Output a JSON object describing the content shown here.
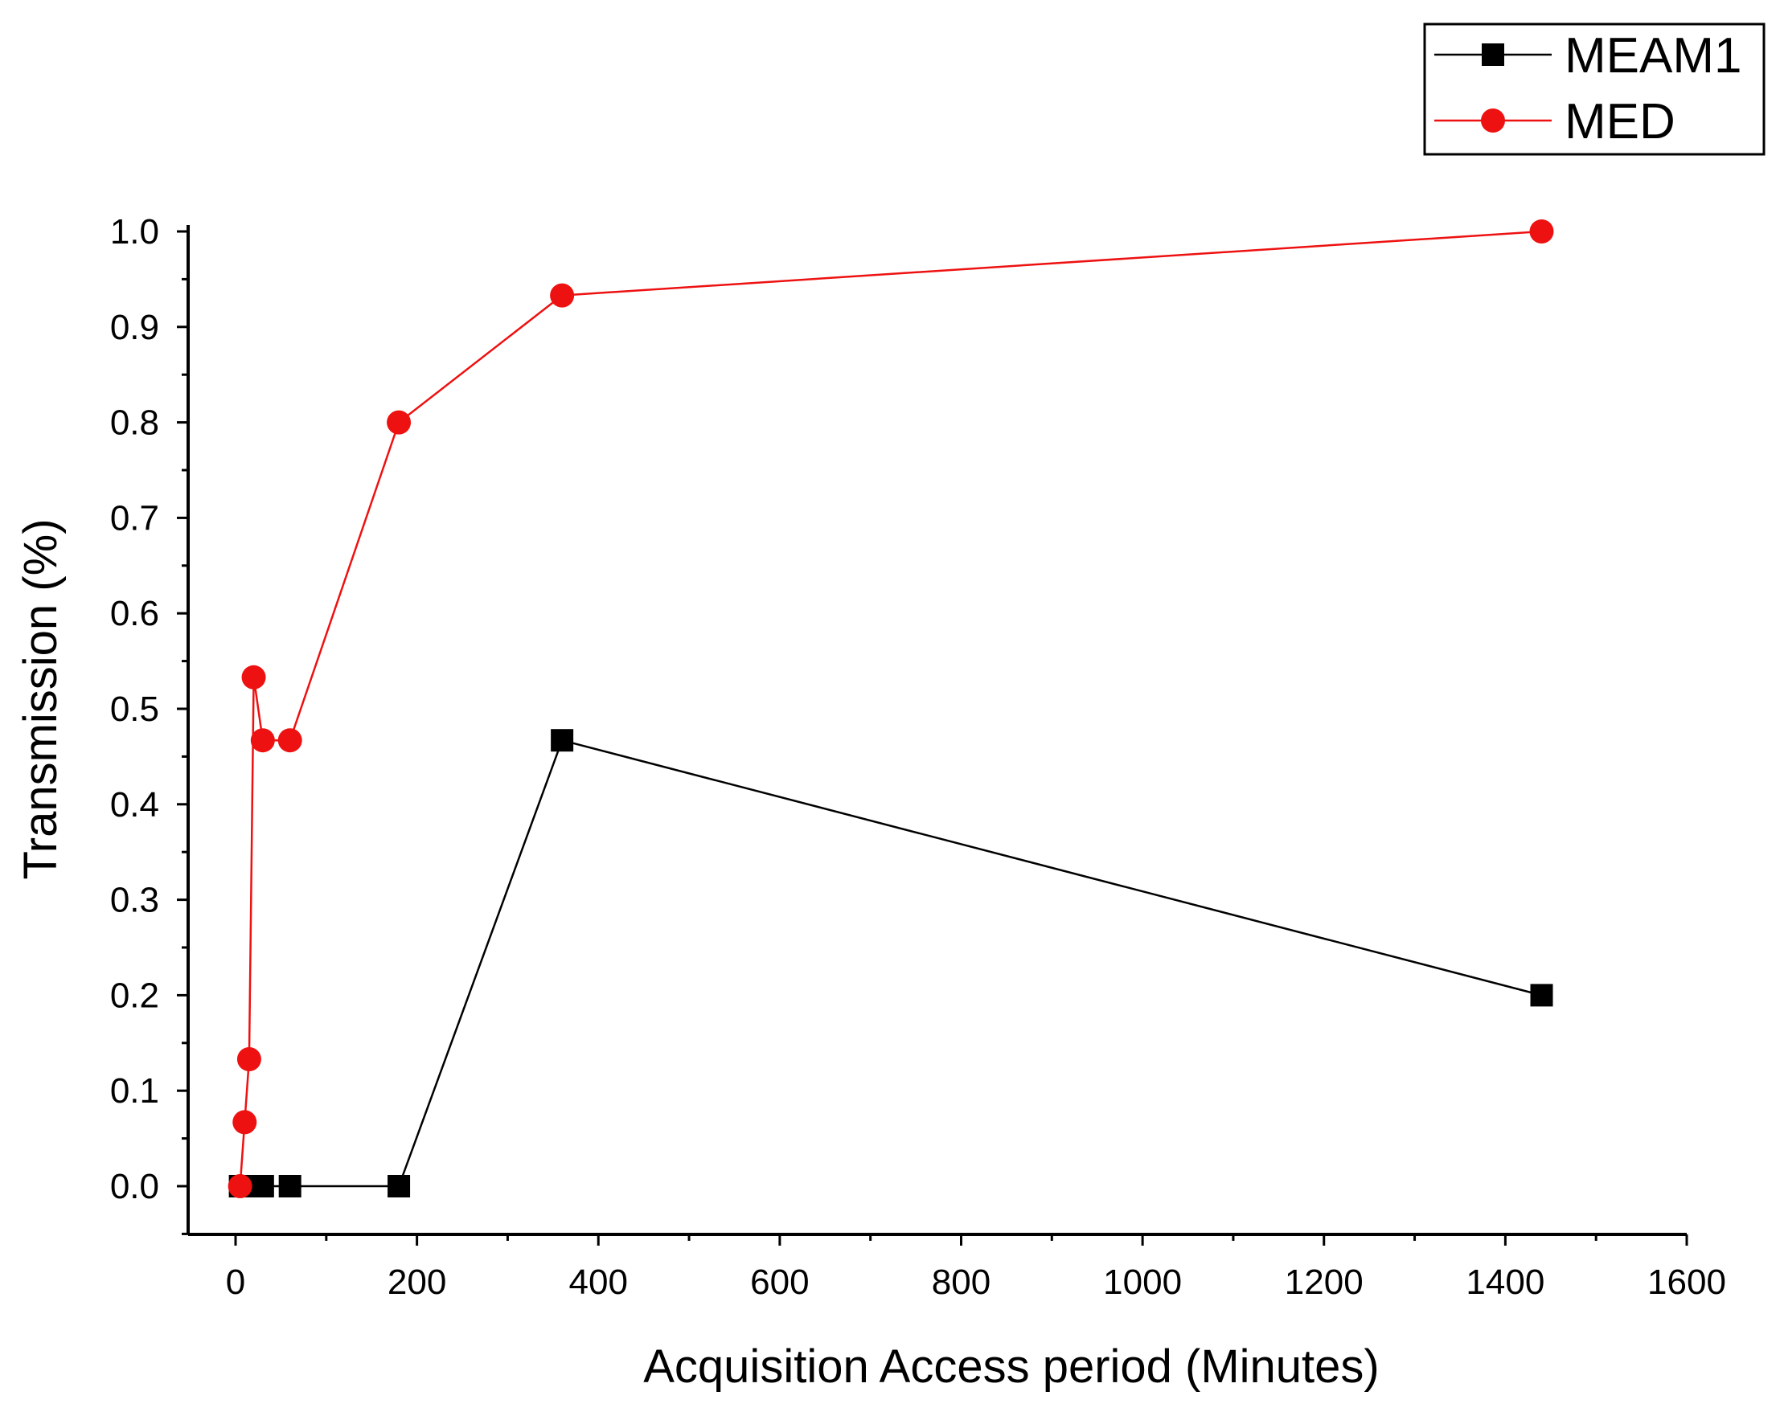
{
  "chart_data": {
    "type": "line",
    "title": "",
    "xlabel": "Acquisition Access period  (Minutes)",
    "ylabel": "Transmission (%)",
    "xlim": [
      -60,
      1600
    ],
    "ylim": [
      -0.05,
      1.0
    ],
    "xticks": [
      0,
      200,
      400,
      600,
      800,
      1000,
      1200,
      1400,
      1600
    ],
    "xtick_labels": [
      "0",
      "200",
      "400",
      "600",
      "800",
      "1000",
      "1200",
      "1400",
      "1600"
    ],
    "yticks": [
      0.0,
      0.1,
      0.2,
      0.3,
      0.4,
      0.5,
      0.6,
      0.7,
      0.8,
      0.9,
      1.0
    ],
    "ytick_labels": [
      "0.0",
      "0.1",
      "0.2",
      "0.3",
      "0.4",
      "0.5",
      "0.6",
      "0.7",
      "0.8",
      "0.9",
      "1.0"
    ],
    "legend_position": "top-right",
    "series": [
      {
        "name": "MEAM1",
        "color": "#000000",
        "marker": "square",
        "x": [
          5,
          10,
          15,
          20,
          30,
          60,
          180,
          360,
          1440
        ],
        "y": [
          0,
          0,
          0,
          0,
          0,
          0,
          0,
          0.467,
          0.2
        ]
      },
      {
        "name": "MED",
        "color": "#ee1111",
        "marker": "circle",
        "x": [
          5,
          10,
          15,
          20,
          30,
          60,
          180,
          360,
          1440
        ],
        "y": [
          0,
          0.067,
          0.133,
          0.533,
          0.467,
          0.467,
          0.8,
          0.933,
          1.0
        ]
      }
    ]
  }
}
